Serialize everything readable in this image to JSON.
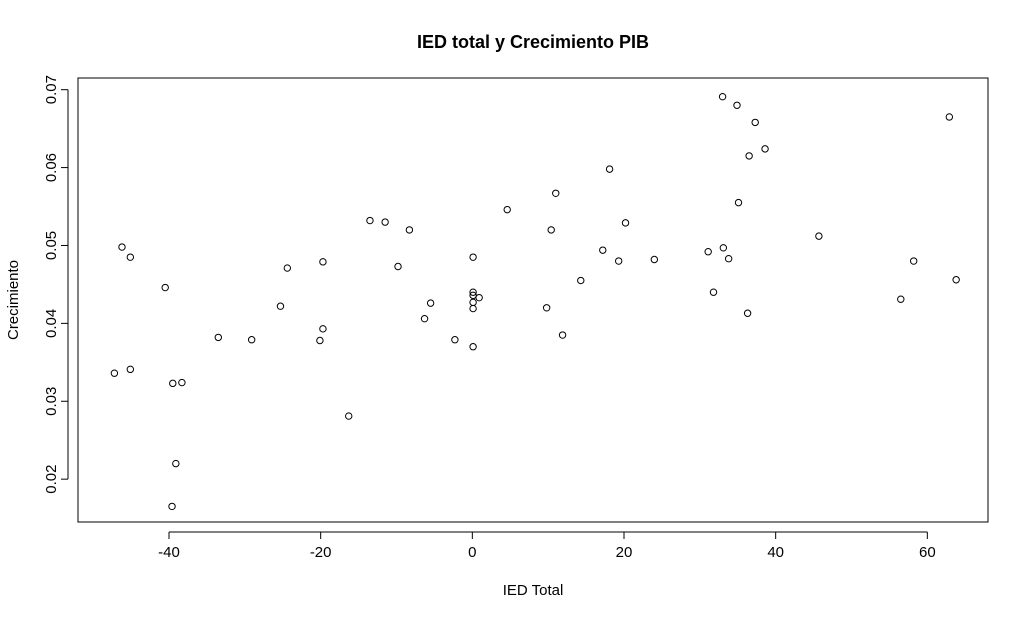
{
  "chart_data": {
    "type": "scatter",
    "title": "IED total  y Crecimiento PIB",
    "xlabel": "IED Total",
    "ylabel": "Crecimiento",
    "xlim": [
      -52,
      68
    ],
    "ylim": [
      0.0145,
      0.0715
    ],
    "xticks": [
      -40,
      -20,
      0,
      20,
      40,
      60
    ],
    "xtick_labels": [
      "-40",
      "-20",
      "0",
      "20",
      "40",
      "60"
    ],
    "yticks": [
      0.02,
      0.03,
      0.04,
      0.05,
      0.06,
      0.07
    ],
    "ytick_labels": [
      "0.02",
      "0.03",
      "0.04",
      "0.05",
      "0.06",
      "0.07"
    ],
    "grid": false,
    "legend": "none",
    "points": [
      {
        "x": -47.2,
        "y": 0.0336
      },
      {
        "x": -46.2,
        "y": 0.0498
      },
      {
        "x": -45.1,
        "y": 0.0485
      },
      {
        "x": -45.1,
        "y": 0.0341
      },
      {
        "x": -40.5,
        "y": 0.0446
      },
      {
        "x": -39.5,
        "y": 0.0323
      },
      {
        "x": -39.1,
        "y": 0.022
      },
      {
        "x": -39.6,
        "y": 0.0165
      },
      {
        "x": -38.3,
        "y": 0.0324
      },
      {
        "x": -33.5,
        "y": 0.0382
      },
      {
        "x": -29.1,
        "y": 0.0379
      },
      {
        "x": -25.3,
        "y": 0.0422
      },
      {
        "x": -24.4,
        "y": 0.0471
      },
      {
        "x": -19.7,
        "y": 0.0479
      },
      {
        "x": -19.7,
        "y": 0.0393
      },
      {
        "x": -20.1,
        "y": 0.0378
      },
      {
        "x": -16.3,
        "y": 0.0281
      },
      {
        "x": -13.5,
        "y": 0.0532
      },
      {
        "x": -11.5,
        "y": 0.053
      },
      {
        "x": -9.8,
        "y": 0.0473
      },
      {
        "x": -8.3,
        "y": 0.052
      },
      {
        "x": -6.3,
        "y": 0.0406
      },
      {
        "x": -5.5,
        "y": 0.0426
      },
      {
        "x": -2.3,
        "y": 0.0379
      },
      {
        "x": 0.1,
        "y": 0.0485
      },
      {
        "x": 0.1,
        "y": 0.044
      },
      {
        "x": 0.1,
        "y": 0.0436
      },
      {
        "x": 0.1,
        "y": 0.0427
      },
      {
        "x": 0.1,
        "y": 0.0419
      },
      {
        "x": 0.1,
        "y": 0.037
      },
      {
        "x": 0.9,
        "y": 0.0433
      },
      {
        "x": 4.6,
        "y": 0.0546
      },
      {
        "x": 9.8,
        "y": 0.042
      },
      {
        "x": 10.4,
        "y": 0.052
      },
      {
        "x": 11.0,
        "y": 0.0567
      },
      {
        "x": 11.9,
        "y": 0.0385
      },
      {
        "x": 14.3,
        "y": 0.0455
      },
      {
        "x": 17.2,
        "y": 0.0494
      },
      {
        "x": 18.1,
        "y": 0.0598
      },
      {
        "x": 19.3,
        "y": 0.048
      },
      {
        "x": 20.2,
        "y": 0.0529
      },
      {
        "x": 24.0,
        "y": 0.0482
      },
      {
        "x": 31.1,
        "y": 0.0492
      },
      {
        "x": 31.8,
        "y": 0.044
      },
      {
        "x": 33.0,
        "y": 0.0691
      },
      {
        "x": 33.1,
        "y": 0.0497
      },
      {
        "x": 33.8,
        "y": 0.0483
      },
      {
        "x": 34.9,
        "y": 0.068
      },
      {
        "x": 35.1,
        "y": 0.0555
      },
      {
        "x": 36.3,
        "y": 0.0413
      },
      {
        "x": 36.5,
        "y": 0.0615
      },
      {
        "x": 37.3,
        "y": 0.0658
      },
      {
        "x": 38.6,
        "y": 0.0624
      },
      {
        "x": 45.7,
        "y": 0.0512
      },
      {
        "x": 56.5,
        "y": 0.0431
      },
      {
        "x": 58.2,
        "y": 0.048
      },
      {
        "x": 62.9,
        "y": 0.0665
      },
      {
        "x": 63.8,
        "y": 0.0456
      }
    ]
  }
}
